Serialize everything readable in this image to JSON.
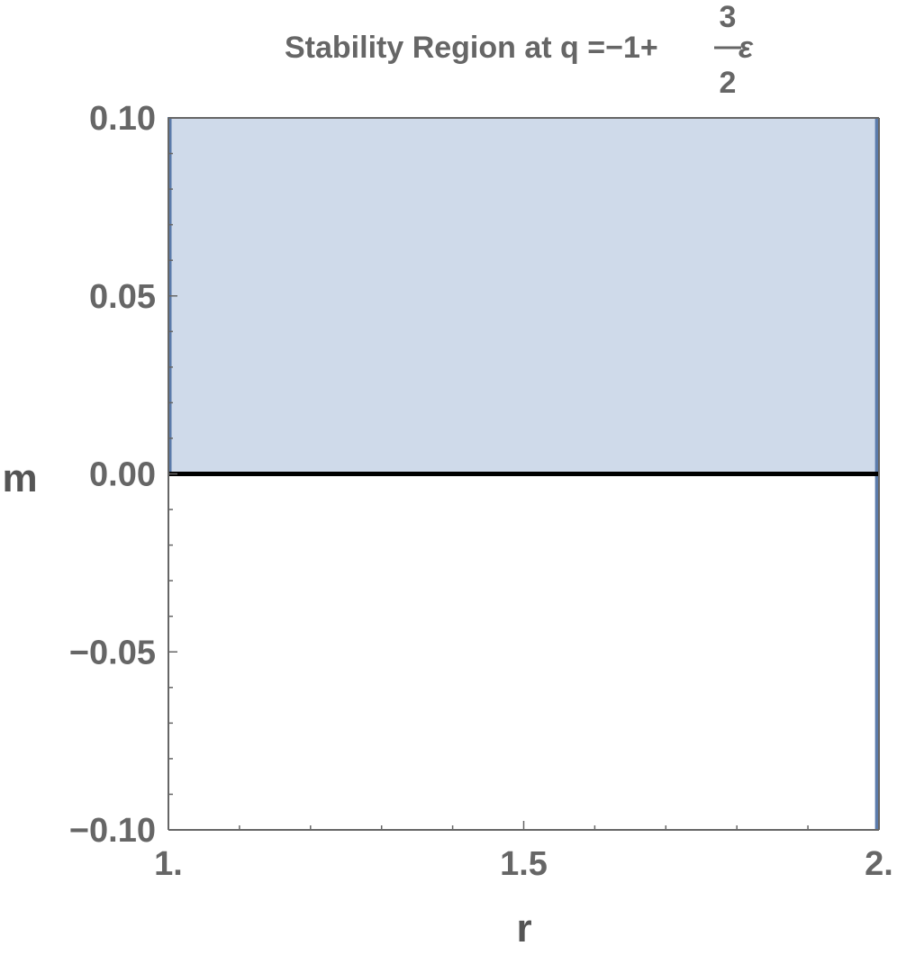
{
  "chart_data": {
    "type": "area",
    "title": {
      "text": "Stability Region at q =−1+",
      "numerator": "3",
      "denominator": "2",
      "epsilon": "ε"
    },
    "xlabel": "r",
    "ylabel": "m",
    "xlim": [
      1.0,
      2.0
    ],
    "ylim": [
      -0.1,
      0.1
    ],
    "x_ticks": [
      {
        "value": 1.0,
        "label": "1."
      },
      {
        "value": 1.5,
        "label": "1.5"
      },
      {
        "value": 2.0,
        "label": "2."
      }
    ],
    "y_ticks": [
      {
        "value": 0.1,
        "label": "0.10"
      },
      {
        "value": 0.05,
        "label": "0.05"
      },
      {
        "value": 0.0,
        "label": "0.00"
      },
      {
        "value": -0.05,
        "label": "−0.05"
      },
      {
        "value": -0.1,
        "label": "−0.10"
      }
    ],
    "region": {
      "x": [
        1.0,
        1.997
      ],
      "y": [
        0.0,
        0.1
      ],
      "fill_color": "#cfdaea",
      "edge_color": "#5b7bab"
    },
    "boundary_x": 1.997,
    "reference_line": {
      "y": 0.0,
      "color": "#000000"
    },
    "grid": false,
    "legend": "none"
  }
}
